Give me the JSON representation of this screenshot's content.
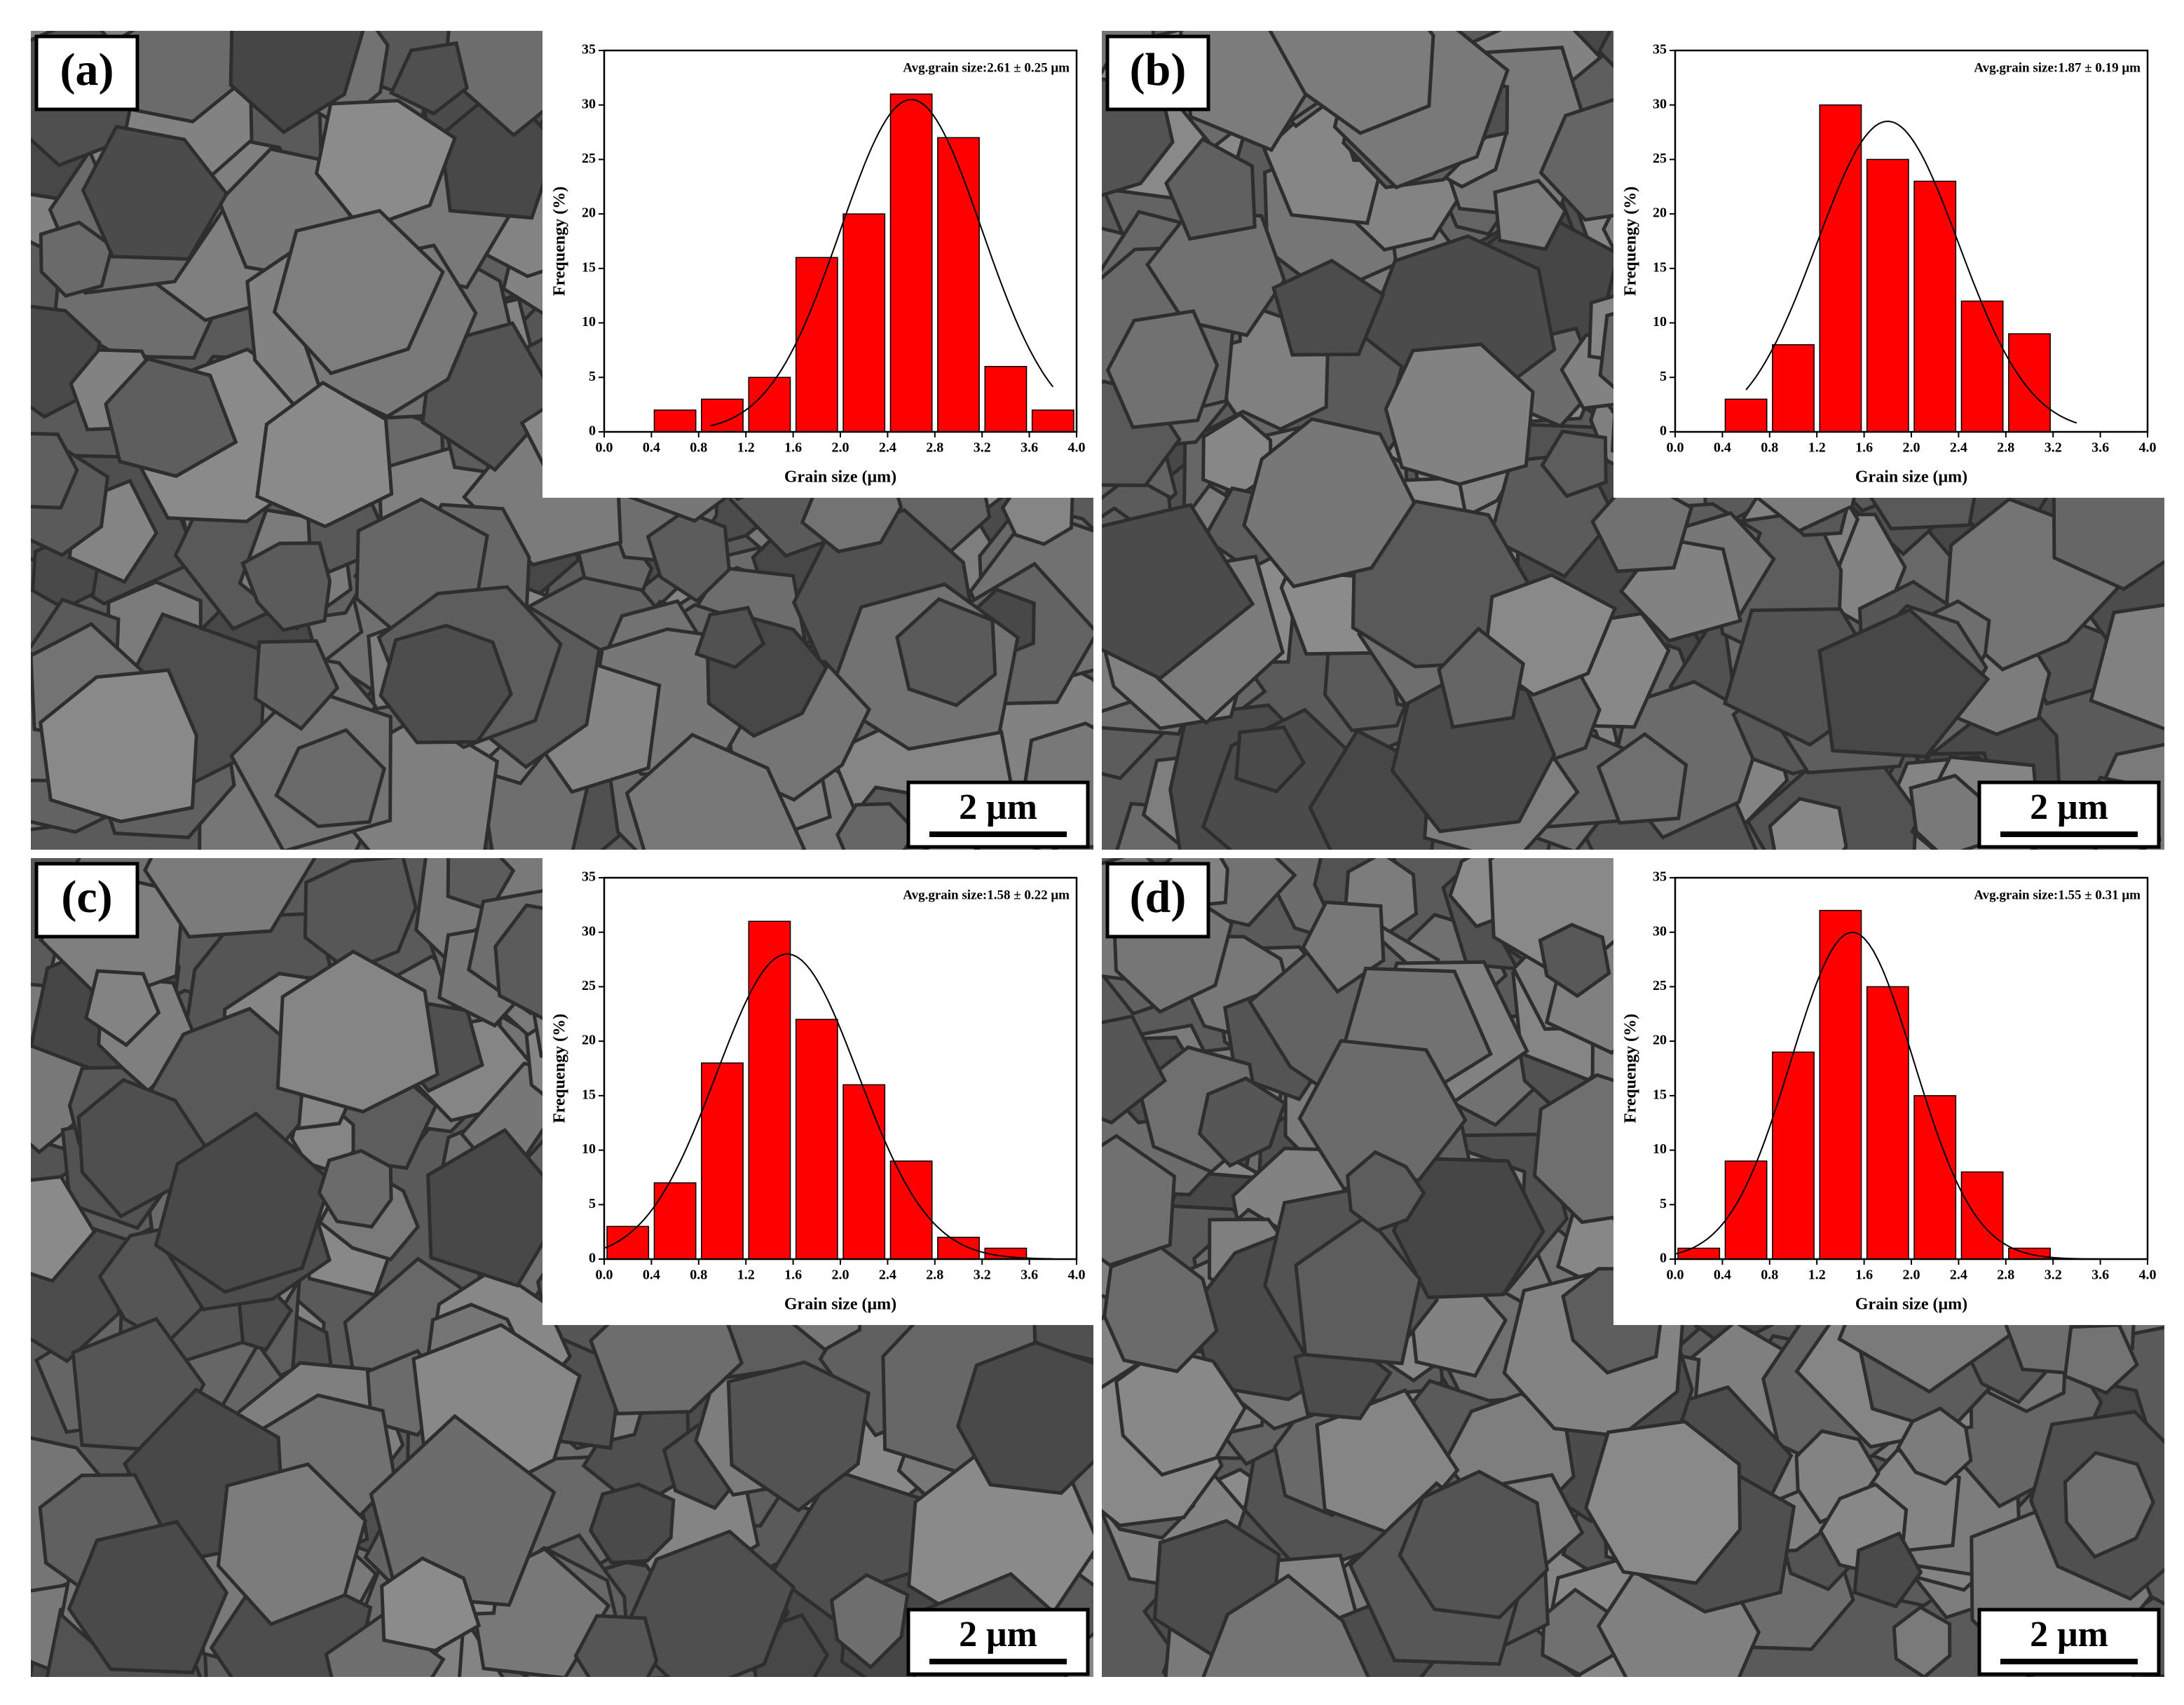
{
  "chart_data": [
    {
      "type": "histogram",
      "panel_label": "(a)",
      "annotation": "Avg.grain size:2.61 ± 0.25 μm",
      "scale_bar": "2 μm",
      "x_label": "Grain size (μm)",
      "y_label": "Frequengy (%)",
      "color": "#ff0000",
      "bins": [
        0.4,
        0.8,
        1.2,
        1.6,
        2.0,
        2.4,
        2.8,
        3.2,
        3.6,
        4.0
      ],
      "values": [
        2,
        3,
        5,
        16,
        20,
        31,
        27,
        6,
        2
      ],
      "fit": {
        "center": 2.6,
        "width": 0.6,
        "height": 30.5,
        "from": 0.9,
        "to": 3.8
      },
      "xlim": [
        0,
        4
      ],
      "ylim": [
        0,
        35
      ],
      "xticks": [
        {
          "value": 0,
          "label": "0.0"
        },
        0.4,
        0.8,
        1.2,
        1.6,
        {
          "value": 2,
          "label": "2.0"
        },
        2.4,
        2.8,
        3.2,
        3.6,
        {
          "value": 4,
          "label": "4.0"
        }
      ],
      "yticks": [
        0,
        5,
        10,
        15,
        20,
        25,
        30,
        35
      ]
    },
    {
      "type": "histogram",
      "panel_label": "(b)",
      "annotation": "Avg.grain size:1.87 ± 0.19 μm",
      "scale_bar": "2 μm",
      "x_label": "Grain size (μm)",
      "y_label": "Frequengy (%)",
      "color": "#ff0000",
      "bins": [
        0.4,
        0.8,
        1.2,
        1.6,
        2.0,
        2.4,
        2.8,
        3.2
      ],
      "values": [
        3,
        8,
        30,
        25,
        23,
        12,
        9
      ],
      "fit": {
        "center": 1.8,
        "width": 0.6,
        "height": 28.5,
        "from": 0.6,
        "to": 3.4
      },
      "xlim": [
        0,
        4
      ],
      "ylim": [
        0,
        35
      ],
      "xticks": [
        {
          "value": 0,
          "label": "0.0"
        },
        0.4,
        0.8,
        1.2,
        1.6,
        {
          "value": 2,
          "label": "2.0"
        },
        2.4,
        2.8,
        3.2,
        3.6,
        {
          "value": 4,
          "label": "4.0"
        }
      ],
      "yticks": [
        0,
        5,
        10,
        15,
        20,
        25,
        30,
        35
      ]
    },
    {
      "type": "histogram",
      "panel_label": "(c)",
      "annotation": "Avg.grain size:1.58 ± 0.22 μm",
      "scale_bar": "2 μm",
      "x_label": "Grain size (μm)",
      "y_label": "Frequengy (%)",
      "color": "#ff0000",
      "bins": [
        0,
        0.4,
        0.8,
        1.2,
        1.6,
        2.0,
        2.4,
        2.8,
        3.2,
        3.6
      ],
      "values": [
        3,
        7,
        18,
        31,
        22,
        16,
        9,
        2,
        1
      ],
      "fit": {
        "center": 1.55,
        "width": 0.6,
        "height": 28,
        "from": 0,
        "to": 3.8
      },
      "xlim": [
        0,
        4
      ],
      "ylim": [
        0,
        35
      ],
      "xticks": [
        {
          "value": 0,
          "label": "0.0"
        },
        0.4,
        0.8,
        1.2,
        1.6,
        {
          "value": 2,
          "label": "2.0"
        },
        2.4,
        2.8,
        3.2,
        3.6,
        {
          "value": 4,
          "label": "4.0"
        }
      ],
      "yticks": [
        0,
        5,
        10,
        15,
        20,
        25,
        30,
        35
      ]
    },
    {
      "type": "histogram",
      "panel_label": "(d)",
      "annotation": "Avg.grain size:1.55 ± 0.31 μm",
      "scale_bar": "2 μm",
      "x_label": "Grain size (μm)",
      "y_label": "Frequengy (%)",
      "color": "#ff0000",
      "bins": [
        0,
        0.4,
        0.8,
        1.2,
        1.6,
        2.0,
        2.4,
        2.8,
        3.2
      ],
      "values": [
        1,
        9,
        19,
        32,
        25,
        15,
        8,
        1
      ],
      "fit": {
        "center": 1.5,
        "width": 0.52,
        "height": 30,
        "from": 0,
        "to": 4
      },
      "xlim": [
        0,
        4
      ],
      "ylim": [
        0,
        35
      ],
      "xticks": [
        {
          "value": 0,
          "label": "0.0"
        },
        0.4,
        0.8,
        1.2,
        1.6,
        {
          "value": 2,
          "label": "2.0"
        },
        2.4,
        2.8,
        3.2,
        3.6,
        {
          "value": 4,
          "label": "4.0"
        }
      ],
      "yticks": [
        0,
        5,
        10,
        15,
        20,
        25,
        30,
        35
      ]
    }
  ]
}
